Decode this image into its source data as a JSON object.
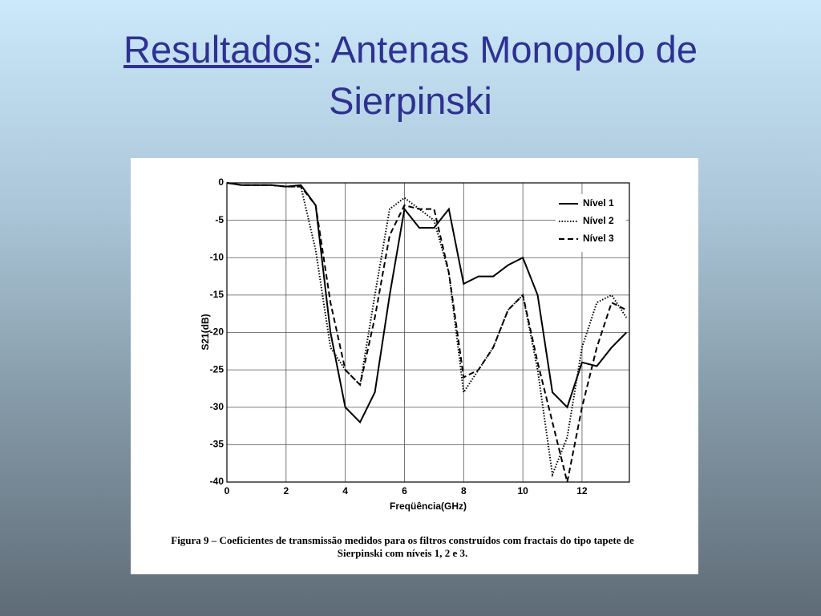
{
  "slide": {
    "title_link": "Resultados",
    "title_text": ": Antenas Monopolo de Sierpinski"
  },
  "chart_data": {
    "type": "line",
    "x_label": "Freqüência(GHz)",
    "y_label": "S21(dB)",
    "x": [
      0,
      0.5,
      1,
      1.5,
      2,
      2.5,
      3,
      3.5,
      4,
      4.5,
      5,
      5.5,
      6,
      6.5,
      7,
      7.5,
      8,
      8.5,
      9,
      9.5,
      10,
      10.5,
      11,
      11.5,
      12,
      12.5,
      13,
      13.5
    ],
    "series": [
      {
        "name": "Nível 1",
        "color": "#000000",
        "dash": "solid",
        "values": [
          0,
          -0.3,
          -0.3,
          -0.3,
          -0.5,
          -0.3,
          -3,
          -20,
          -30,
          -32,
          -28,
          -15,
          -3.5,
          -6,
          -6,
          -3.5,
          -13.5,
          -12.5,
          -12.5,
          -11,
          -10,
          -15,
          -28,
          -30,
          -24,
          -24.5,
          -22,
          -20
        ]
      },
      {
        "name": "Nível 2",
        "color": "#000000",
        "dash": "dotted",
        "values": [
          0,
          -0.3,
          -0.3,
          -0.3,
          -0.5,
          -0.5,
          -9,
          -22,
          -25,
          -27,
          -15,
          -3.5,
          -2,
          -3.5,
          -5,
          -12,
          -28,
          -25,
          -22,
          -17,
          -15,
          -25,
          -39,
          -34,
          -22,
          -16,
          -15,
          -18
        ]
      },
      {
        "name": "Nível 3",
        "color": "#000000",
        "dash": "dashed",
        "values": [
          0,
          -0.3,
          -0.3,
          -0.3,
          -0.5,
          -0.5,
          -3,
          -16,
          -25,
          -27,
          -18,
          -7,
          -3,
          -3.5,
          -3.5,
          -12,
          -26,
          -25,
          -22,
          -17,
          -15,
          -24,
          -32,
          -40,
          -30,
          -22,
          -16,
          -17
        ]
      }
    ],
    "xlim": [
      0,
      13.6
    ],
    "xticks": [
      0,
      2,
      4,
      6,
      8,
      10,
      12
    ],
    "ylim": [
      -40,
      0
    ],
    "yticks": [
      0,
      -5,
      -10,
      -15,
      -20,
      -25,
      -30,
      -35,
      -40
    ],
    "grid": true,
    "legend": "upper right",
    "caption": [
      "Figura 9 – Coeficientes de transmissão medidos para os filtros construídos com fractais do tipo tapete de",
      "Sierpinski com níveis 1, 2 e 3."
    ]
  }
}
